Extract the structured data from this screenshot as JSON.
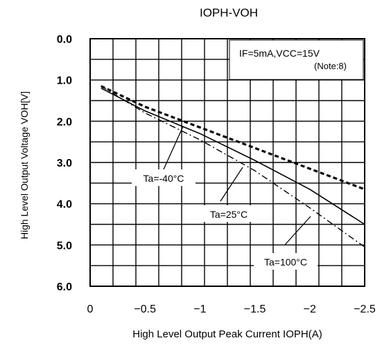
{
  "chart_data": {
    "type": "line",
    "title": "IOPH-VOH",
    "xlabel": "High Level Output Peak Current IOPH(A)",
    "ylabel": "High Level Output Voltage VOH[V]",
    "xlim": [
      0,
      -2.5
    ],
    "ylim": [
      0,
      6
    ],
    "x_ticks": [
      0,
      -0.5,
      -1,
      -1.5,
      -2,
      -2.5
    ],
    "x_tick_labels": [
      "0",
      "−0.5",
      "−1",
      "−1.5",
      "−2",
      "−2.5"
    ],
    "y_ticks": [
      0,
      1,
      2,
      3,
      4,
      5,
      6
    ],
    "y_tick_labels": [
      "0.0",
      "1.0",
      "2.0",
      "3.0",
      "4.0",
      "5.0",
      "6.0"
    ],
    "grid": true,
    "y_inverted": true,
    "condition_box": {
      "line1": "IF=5mA,VCC=15V",
      "line2": "(Note:8)"
    },
    "series": [
      {
        "name": "Ta=-40°C",
        "style": "dashed",
        "x": [
          -0.1,
          -0.5,
          -1.0,
          -1.5,
          -2.0,
          -2.5
        ],
        "y": [
          1.15,
          1.65,
          2.15,
          2.65,
          3.15,
          3.65
        ]
      },
      {
        "name": "Ta=25°C",
        "style": "solid",
        "x": [
          -0.1,
          -0.5,
          -1.0,
          -1.5,
          -2.0,
          -2.5
        ],
        "y": [
          1.2,
          1.75,
          2.3,
          2.95,
          3.65,
          4.5
        ]
      },
      {
        "name": "Ta=100°C",
        "style": "dashdot",
        "x": [
          -0.1,
          -0.5,
          -1.0,
          -1.5,
          -2.0,
          -2.5
        ],
        "y": [
          1.15,
          1.8,
          2.45,
          3.2,
          4.1,
          5.05
        ]
      }
    ],
    "annotations": [
      {
        "label": "Ta=-40°C",
        "series": 0
      },
      {
        "label": "Ta=25°C",
        "series": 1
      },
      {
        "label": "Ta=100°C",
        "series": 2
      }
    ]
  }
}
